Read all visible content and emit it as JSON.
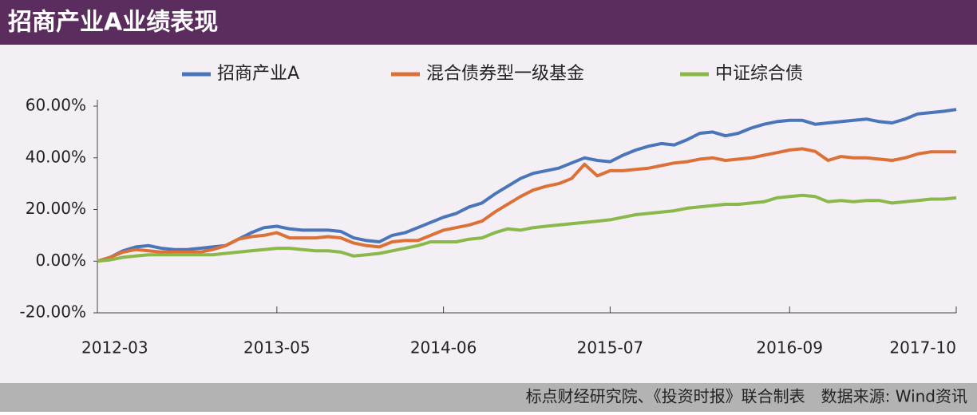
{
  "chart_data": {
    "type": "line",
    "title": "招商产业A业绩表现",
    "note": "标点财经研究院、《投资时报》联合制表　数据来源: Wind资讯",
    "categories": [
      "2012-03",
      null,
      null,
      null,
      null,
      null,
      null,
      null,
      null,
      null,
      null,
      null,
      null,
      null,
      "2013-05",
      null,
      null,
      null,
      null,
      null,
      null,
      null,
      null,
      null,
      null,
      null,
      null,
      "2014-06",
      null,
      null,
      null,
      null,
      null,
      null,
      null,
      null,
      null,
      null,
      null,
      null,
      "2015-07",
      null,
      null,
      null,
      null,
      null,
      null,
      null,
      null,
      null,
      null,
      null,
      null,
      null,
      "2016-09",
      null,
      null,
      null,
      null,
      null,
      null,
      null,
      null,
      null,
      null,
      null,
      null,
      "2017-10"
    ],
    "series": [
      {
        "name": "招商产业A",
        "color": "#4a75b9",
        "values": [
          0,
          1.5,
          4,
          5.5,
          6,
          5,
          4.5,
          4.5,
          5,
          5.5,
          6,
          8.5,
          11,
          13,
          13.5,
          12.5,
          12,
          12,
          12,
          11.5,
          9,
          8,
          7.5,
          10,
          11,
          13,
          15,
          17,
          18.5,
          21,
          22.5,
          26,
          29,
          32,
          34,
          35,
          36,
          38,
          40,
          39,
          38.5,
          41,
          43,
          44.5,
          45.5,
          45,
          47,
          49.5,
          50,
          48.5,
          49.5,
          51.5,
          53,
          54,
          54.5,
          54.5,
          53,
          53.5,
          54,
          54.5,
          55,
          54,
          53.5,
          55,
          57,
          57.5,
          58,
          58.7
        ]
      },
      {
        "name": "混合债券型一级基金",
        "color": "#dc7137",
        "values": [
          0,
          1.5,
          3.5,
          4.5,
          4,
          3.5,
          3.5,
          3.5,
          3.5,
          4.5,
          6,
          8.5,
          9.5,
          10,
          11,
          9,
          9,
          9,
          9.5,
          9,
          7,
          6,
          5.5,
          7.5,
          8,
          8,
          10,
          12,
          13,
          14,
          15.5,
          19,
          22,
          25,
          27.5,
          29,
          30,
          32,
          37.5,
          33,
          35,
          35,
          35.5,
          36,
          37,
          38,
          38.5,
          39.5,
          40,
          39,
          39.5,
          40,
          41,
          42,
          43,
          43.5,
          42.5,
          39,
          40.5,
          40,
          40,
          39.5,
          39,
          40,
          41.5,
          42.3,
          42.3,
          42.3
        ]
      },
      {
        "name": "中证综合债",
        "color": "#8ab84a",
        "values": [
          0,
          0.5,
          1.5,
          2,
          2.5,
          2.5,
          2.5,
          2.5,
          2.5,
          2.5,
          3,
          3.5,
          4,
          4.5,
          5,
          5,
          4.5,
          4,
          4,
          3.5,
          2,
          2.5,
          3,
          4,
          5,
          6,
          7.5,
          7.5,
          7.5,
          8.5,
          9,
          11,
          12.5,
          12,
          13,
          13.5,
          14,
          14.5,
          15,
          15.5,
          16,
          17,
          18,
          18.5,
          19,
          19.5,
          20.5,
          21,
          21.5,
          22,
          22,
          22.5,
          23,
          24.5,
          25,
          25.5,
          25,
          23,
          23.5,
          23,
          23.5,
          23.5,
          22.5,
          23,
          23.5,
          24,
          24,
          24.5
        ]
      }
    ],
    "ylim": [
      -20,
      60
    ],
    "yticks": [
      {
        "value": -20,
        "label": "-20.00%"
      },
      {
        "value": 0,
        "label": "0.00%"
      },
      {
        "value": 20,
        "label": "20.00%"
      },
      {
        "value": 40,
        "label": "40.00%"
      },
      {
        "value": 60,
        "label": "60.00%"
      }
    ]
  }
}
